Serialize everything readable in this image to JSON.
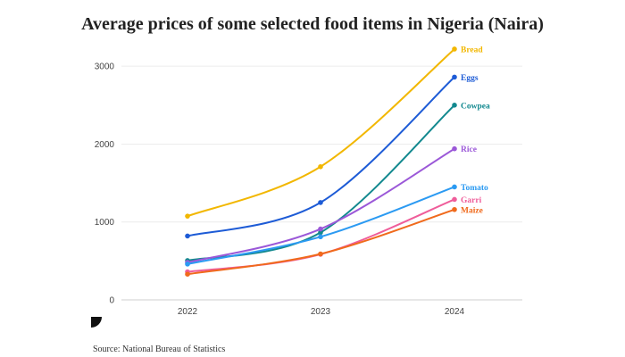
{
  "chart_data": {
    "type": "line",
    "title": "Average prices of some selected food items in Nigeria (Naira)",
    "x": [
      "2022",
      "2023",
      "2024"
    ],
    "ylim": [
      0,
      3300
    ],
    "yticks": [
      "0",
      "1000",
      "2000",
      "3000"
    ],
    "grid": true,
    "legend": "inline labels at line ends",
    "series": [
      {
        "name": "Bread",
        "color": "#f2b700",
        "values": [
          1075,
          1710,
          3220
        ]
      },
      {
        "name": "Eggs",
        "color": "#1d5bd6",
        "values": [
          820,
          1250,
          2860
        ]
      },
      {
        "name": "Cowpea",
        "color": "#13898f",
        "values": [
          505,
          865,
          2500
        ]
      },
      {
        "name": "Rice",
        "color": "#9b58d8",
        "values": [
          480,
          910,
          1940
        ]
      },
      {
        "name": "Tomato",
        "color": "#2b9af2",
        "values": [
          460,
          810,
          1450
        ]
      },
      {
        "name": "Garri",
        "color": "#ef5d9a",
        "values": [
          360,
          585,
          1290
        ]
      },
      {
        "name": "Maize",
        "color": "#f06a1c",
        "values": [
          330,
          590,
          1160
        ]
      }
    ]
  },
  "source": "Source: National Bureau of Statistics"
}
